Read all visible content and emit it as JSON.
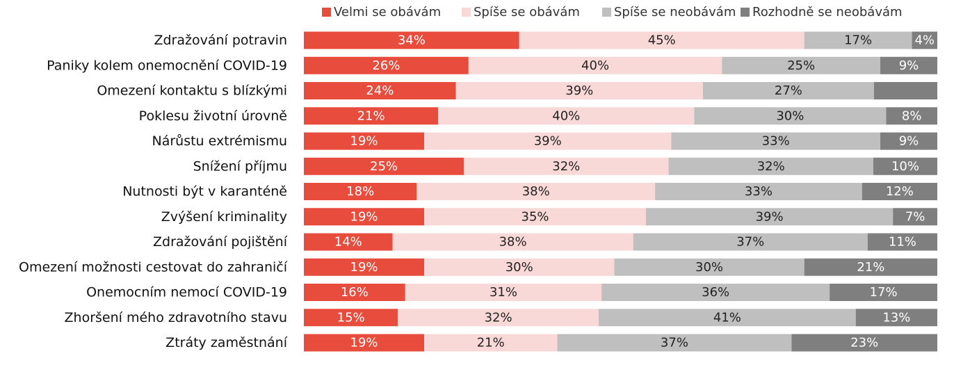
{
  "chart_data": {
    "type": "bar",
    "orientation": "horizontal",
    "stacked": true,
    "percent_stacked": true,
    "legend_position": "top",
    "grid": false,
    "categories": [
      "Zdražování potravin",
      "Paniky kolem onemocnění COVID-19",
      "Omezení kontaktu s blízkými",
      "Poklesu životní úrovně",
      "Nárůstu extrémismu",
      "Snížení příjmu",
      "Nutnosti být v karanténě",
      "Zvýšení kriminality",
      "Zdražování pojištění",
      "Omezení možnosti cestovat do zahraničí",
      "Onemocním nemocí COVID-19",
      "Zhoršení mého zdravotního stavu",
      "Ztráty zaměstnání"
    ],
    "series": [
      {
        "name": "Velmi se obávám",
        "color": "#E84C3D",
        "label_color": "#ffffff",
        "values": [
          34,
          26,
          24,
          21,
          19,
          25,
          18,
          19,
          14,
          19,
          16,
          15,
          19
        ],
        "labels": [
          "34%",
          "26%",
          "24%",
          "21%",
          "19%",
          "25%",
          "18%",
          "19%",
          "14%",
          "19%",
          "16%",
          "15%",
          "19%"
        ]
      },
      {
        "name": "Spíše se obávám",
        "color": "#F9D9D7",
        "label_color": "#222222",
        "values": [
          45,
          40,
          39,
          40,
          39,
          32,
          38,
          35,
          38,
          30,
          31,
          32,
          21
        ],
        "labels": [
          "45%",
          "40%",
          "39%",
          "40%",
          "39%",
          "32%",
          "38%",
          "35%",
          "38%",
          "30%",
          "31%",
          "32%",
          "21%"
        ]
      },
      {
        "name": "Spíše se neobávám",
        "color": "#BFBFBF",
        "label_color": "#222222",
        "values": [
          17,
          25,
          27,
          30,
          33,
          32,
          33,
          39,
          37,
          30,
          36,
          41,
          37
        ],
        "labels": [
          "17%",
          "25%",
          "27%",
          "30%",
          "33%",
          "32%",
          "33%",
          "39%",
          "37%",
          "30%",
          "36%",
          "41%",
          "37%"
        ]
      },
      {
        "name": "Rozhodně se neobávám",
        "color": "#7F7F7F",
        "label_color": "#ffffff",
        "values": [
          4,
          9,
          10,
          8,
          9,
          10,
          12,
          7,
          11,
          21,
          17,
          13,
          23
        ],
        "labels": [
          "4%",
          "9%",
          "",
          "8%",
          "9%",
          "10%",
          "12%",
          "7%",
          "11%",
          "21%",
          "17%",
          "13%",
          "23%"
        ]
      }
    ]
  }
}
